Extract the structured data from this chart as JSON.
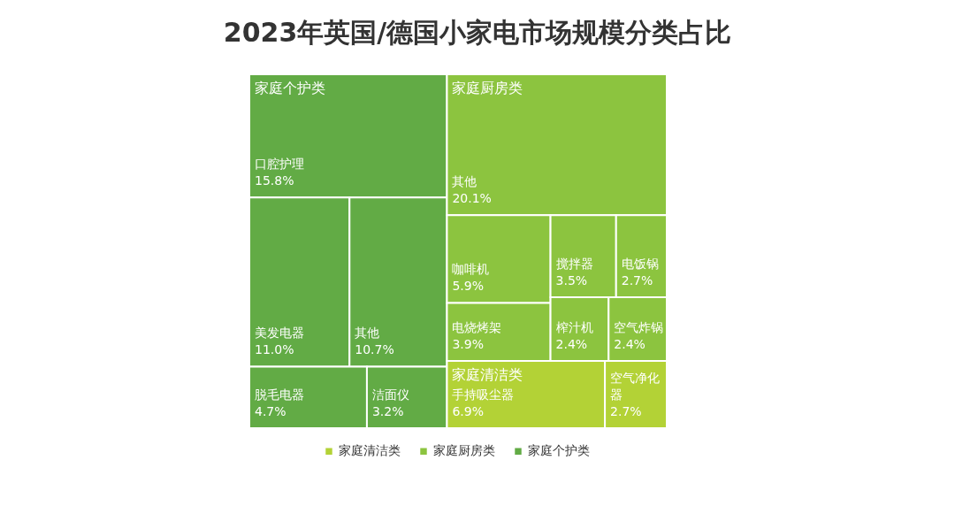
{
  "chart_data": {
    "type": "other",
    "title": "2023年英国/德国小家电市场规模分类占比",
    "legend": "bottom",
    "categories": [
      "口腔护理",
      "美发电器",
      "其他",
      "脱毛电器",
      "洁面仪",
      "其他",
      "咖啡机",
      "电烧烤架",
      "搅拌器",
      "电饭锅",
      "榨汁机",
      "空气炸锅",
      "手持吸尘器",
      "空气净化器"
    ],
    "series": [
      {
        "name": "家庭个护类",
        "color": "#62ab45",
        "values": [
          15.8,
          11.0,
          10.7,
          4.7,
          3.2,
          null,
          null,
          null,
          null,
          null,
          null,
          null,
          null,
          null
        ],
        "value_labels": [
          "15.8%",
          "11.0%",
          "10.7%",
          "4.7%",
          "3.2%",
          null,
          null,
          null,
          null,
          null,
          null,
          null,
          null,
          null
        ]
      },
      {
        "name": "家庭厨房类",
        "color": "#8cc43f",
        "values": [
          null,
          null,
          null,
          null,
          null,
          20.1,
          5.9,
          3.9,
          3.5,
          2.7,
          2.4,
          2.4,
          null,
          null
        ],
        "value_labels": [
          null,
          null,
          null,
          null,
          null,
          "20.1%",
          "5.9%",
          "3.9%",
          "3.5%",
          "2.7%",
          "2.4%",
          "2.4%",
          null,
          null
        ]
      },
      {
        "name": "家庭清洁类",
        "color": "#b3d236",
        "values": [
          null,
          null,
          null,
          null,
          null,
          null,
          null,
          null,
          null,
          null,
          null,
          null,
          6.9,
          2.7
        ],
        "value_labels": [
          null,
          null,
          null,
          null,
          null,
          null,
          null,
          null,
          null,
          null,
          null,
          null,
          "6.9%",
          "2.7%"
        ]
      }
    ]
  }
}
